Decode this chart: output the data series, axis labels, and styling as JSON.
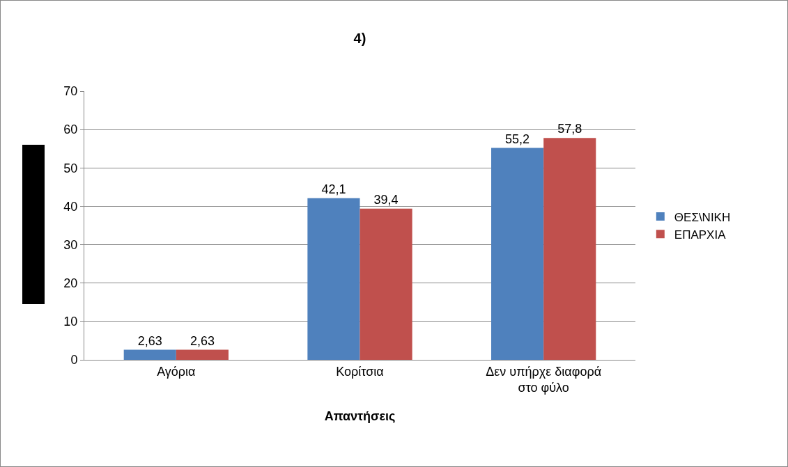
{
  "chart_data": {
    "type": "bar",
    "title": "4)",
    "xlabel": "Απαντήσεις",
    "categories": [
      "Αγόρια",
      "Κορίτσια",
      "Δεν υπήρχε διαφορά στο φύλο"
    ],
    "series": [
      {
        "name": "ΘΕΣ\\ΝΙΚΗ",
        "color": "#4f81bd",
        "values": [
          2.63,
          42.1,
          55.2
        ],
        "value_labels": [
          "2,63",
          "42,1",
          "55,2"
        ]
      },
      {
        "name": "ΕΠΑΡΧΙΑ",
        "color": "#c0504d",
        "values": [
          2.63,
          39.4,
          57.8
        ],
        "value_labels": [
          "2,63",
          "39,4",
          "57,8"
        ]
      }
    ],
    "ylim": [
      0,
      70
    ],
    "yticks": [
      0,
      10,
      20,
      30,
      40,
      50,
      60,
      70
    ],
    "grid": "y",
    "legend": "right"
  }
}
